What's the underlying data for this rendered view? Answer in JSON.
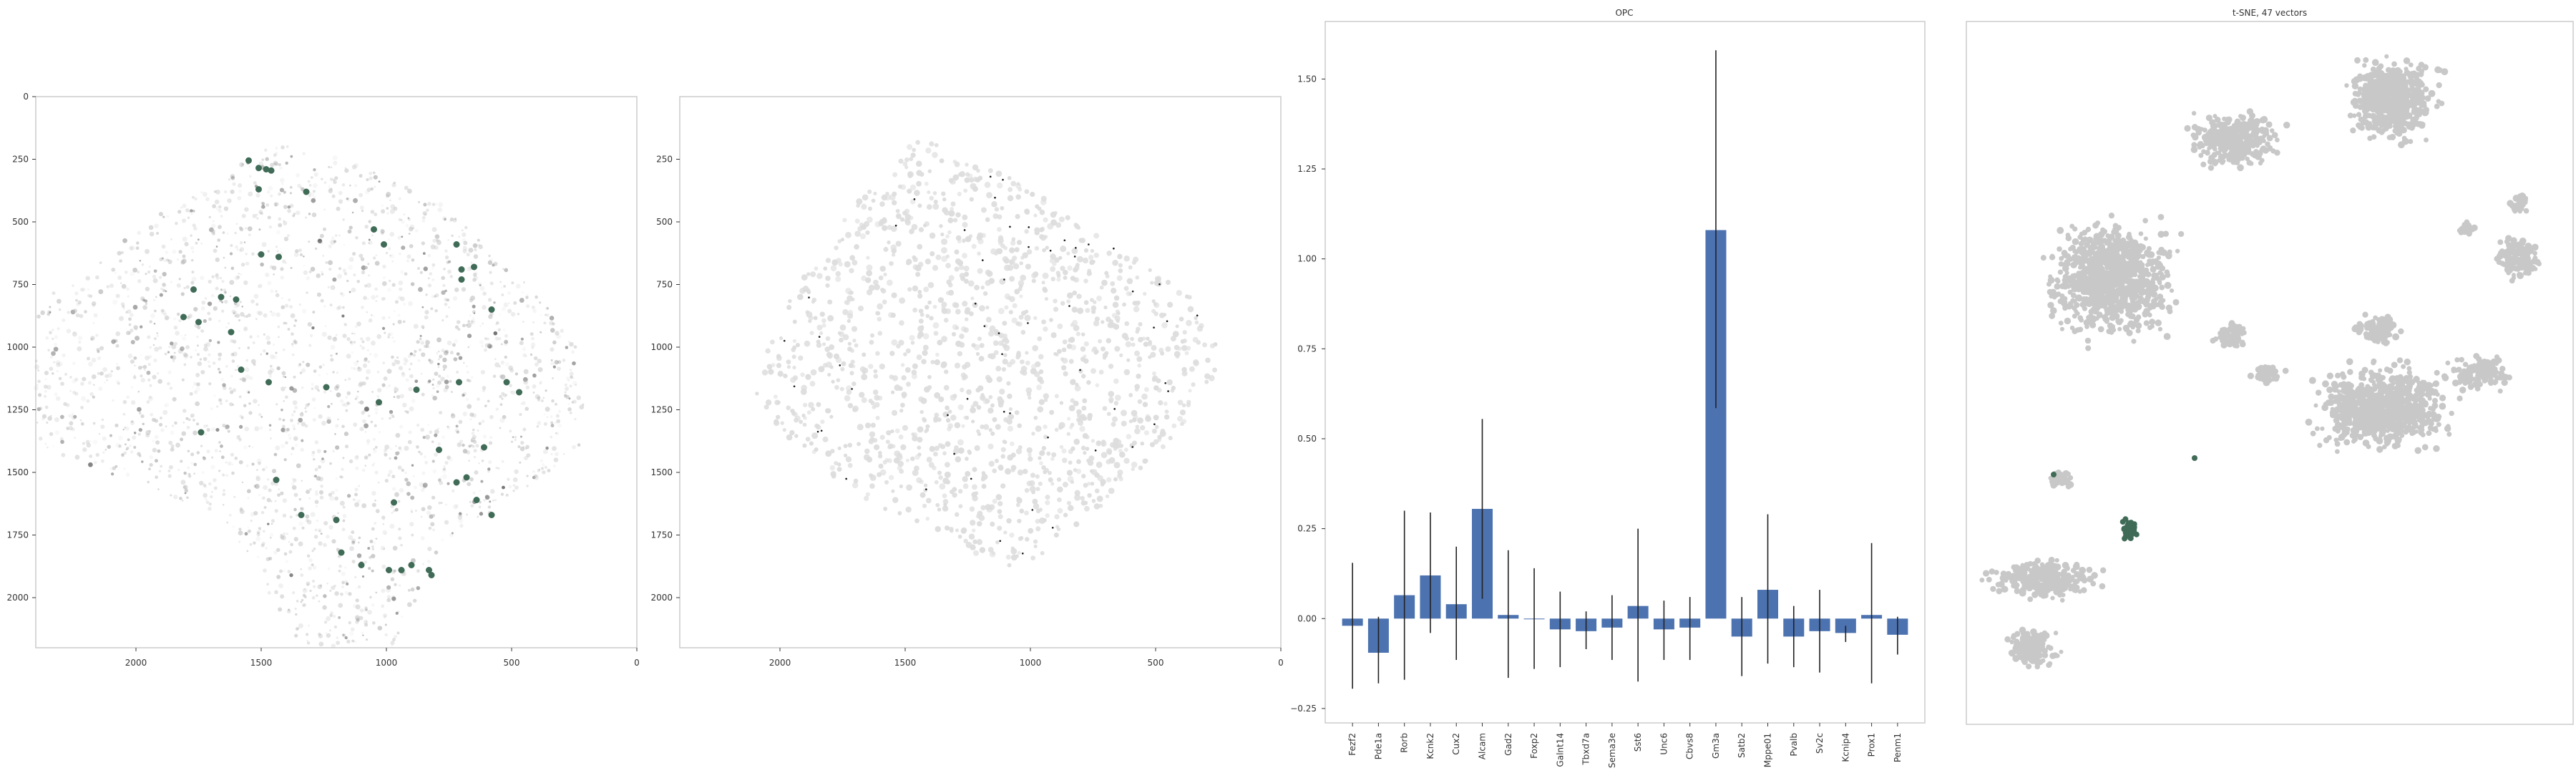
{
  "figure": {
    "background": "#ffffff",
    "frame_color": "#cccccc"
  },
  "chart_data": [
    {
      "type": "scatter",
      "panel": "tissue-all-cells",
      "title": "",
      "xlim": [
        2400,
        0
      ],
      "ylim": [
        2200,
        0
      ],
      "x_ticks": [
        2000,
        1500,
        1000,
        500,
        0
      ],
      "y_ticks": [
        0,
        250,
        500,
        750,
        1000,
        1250,
        1500,
        1750,
        2000
      ],
      "background_color": "#d0d0d0",
      "highlight_color": "#3f6b57",
      "highlighted_points": [
        [
          1550,
          255
        ],
        [
          1510,
          285
        ],
        [
          1480,
          290
        ],
        [
          1460,
          295
        ],
        [
          1320,
          380
        ],
        [
          1510,
          370
        ],
        [
          1050,
          530
        ],
        [
          1010,
          590
        ],
        [
          720,
          590
        ],
        [
          700,
          690
        ],
        [
          650,
          680
        ],
        [
          700,
          730
        ],
        [
          580,
          850
        ],
        [
          1500,
          630
        ],
        [
          1430,
          640
        ],
        [
          1770,
          770
        ],
        [
          1660,
          800
        ],
        [
          1600,
          810
        ],
        [
          1750,
          900
        ],
        [
          1620,
          940
        ],
        [
          1810,
          880
        ],
        [
          1580,
          1090
        ],
        [
          1470,
          1140
        ],
        [
          1240,
          1160
        ],
        [
          1030,
          1220
        ],
        [
          880,
          1170
        ],
        [
          710,
          1140
        ],
        [
          520,
          1140
        ],
        [
          470,
          1180
        ],
        [
          1740,
          1340
        ],
        [
          1440,
          1530
        ],
        [
          1200,
          1690
        ],
        [
          970,
          1620
        ],
        [
          1340,
          1670
        ],
        [
          1180,
          1820
        ],
        [
          1100,
          1870
        ],
        [
          990,
          1890
        ],
        [
          900,
          1870
        ],
        [
          830,
          1890
        ],
        [
          580,
          1670
        ],
        [
          640,
          1610
        ],
        [
          720,
          1540
        ],
        [
          610,
          1400
        ],
        [
          790,
          1410
        ],
        [
          680,
          1520
        ],
        [
          820,
          1910
        ],
        [
          940,
          1890
        ]
      ]
    },
    {
      "type": "scatter",
      "panel": "tissue-selected-cells",
      "title": "",
      "xlim": [
        2400,
        0
      ],
      "ylim": [
        2200,
        0
      ],
      "x_ticks": [
        2000,
        1500,
        1000,
        500,
        0
      ],
      "y_ticks": [
        250,
        500,
        750,
        1000,
        1250,
        1500,
        1750,
        2000
      ],
      "background_color": "#dddddd",
      "highlight_color": "#1a1a1a"
    },
    {
      "type": "bar",
      "panel": "gene-expression",
      "title": "OPC",
      "categories": [
        "Fezf2",
        "Pde1a",
        "Rorb",
        "Kcnk2",
        "Cux2",
        "Alcam",
        "Gad2",
        "Foxp2",
        "Galnt14",
        "Tbxd7a",
        "Sema3e",
        "Sst6",
        "Unc6",
        "Cbvs8",
        "Gm3a",
        "Satb2",
        "Mppe01",
        "Pvalb",
        "Sv2c",
        "Kcnip4",
        "Prox1",
        "Penm1"
      ],
      "values": [
        -0.02,
        -0.095,
        0.065,
        0.12,
        0.04,
        0.305,
        0.01,
        0.0,
        -0.03,
        -0.035,
        -0.025,
        0.035,
        -0.03,
        -0.025,
        1.08,
        -0.05,
        0.08,
        -0.05,
        -0.035,
        -0.04,
        0.01,
        -0.045
      ],
      "error_low": [
        -0.195,
        -0.18,
        -0.17,
        -0.04,
        -0.115,
        0.055,
        -0.165,
        -0.14,
        -0.135,
        -0.085,
        -0.115,
        -0.175,
        -0.115,
        -0.115,
        0.585,
        -0.16,
        -0.125,
        -0.135,
        -0.15,
        -0.065,
        -0.18,
        -0.1
      ],
      "error_high": [
        0.155,
        0.005,
        0.3,
        0.295,
        0.2,
        0.555,
        0.19,
        0.14,
        0.075,
        0.02,
        0.065,
        0.25,
        0.05,
        0.06,
        1.58,
        0.06,
        0.29,
        0.035,
        0.08,
        -0.02,
        0.21,
        0.005
      ],
      "ylim": [
        -0.29,
        1.66
      ],
      "y_ticks": [
        -0.25,
        0.0,
        0.25,
        0.5,
        0.75,
        1.0,
        1.25,
        1.5
      ],
      "y_tick_labels": [
        "−0.25",
        "0.00",
        "0.25",
        "0.50",
        "0.75",
        "1.00",
        "1.25",
        "1.50"
      ],
      "bar_color": "#4c72b0",
      "error_color": "#222222"
    },
    {
      "type": "scatter",
      "title": "t-SNE, 47 vectors",
      "panel": "tsne",
      "background_color": "#c8c8c8",
      "highlight_color": "#3f6b57"
    }
  ]
}
